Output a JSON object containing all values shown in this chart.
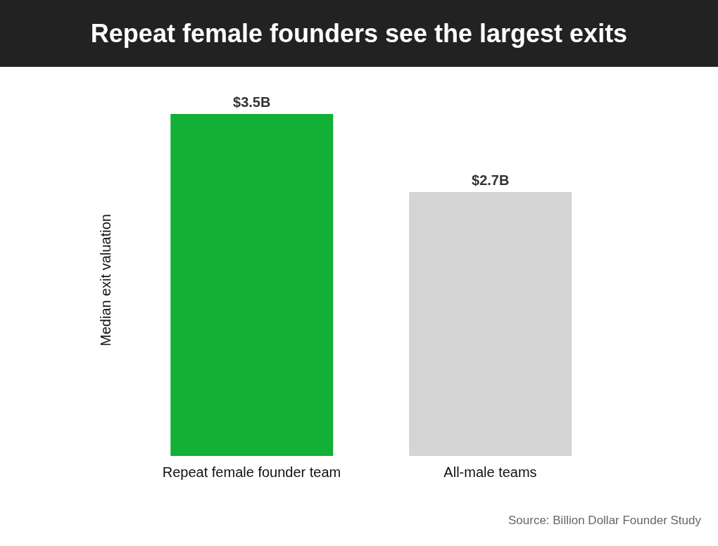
{
  "chart_data": {
    "type": "bar",
    "title": "Repeat female founders see the largest exits",
    "ylabel": "Median exit valuation",
    "categories": [
      "Repeat female founder team",
      "All-male teams"
    ],
    "values": [
      3.5,
      2.7
    ],
    "colors": [
      "#12b035",
      "#d4d4d4"
    ],
    "value_labels": [
      "$3.5B",
      "$2.7B"
    ],
    "annotations": [
      "Source: Billion Dollar Founder Study"
    ]
  }
}
